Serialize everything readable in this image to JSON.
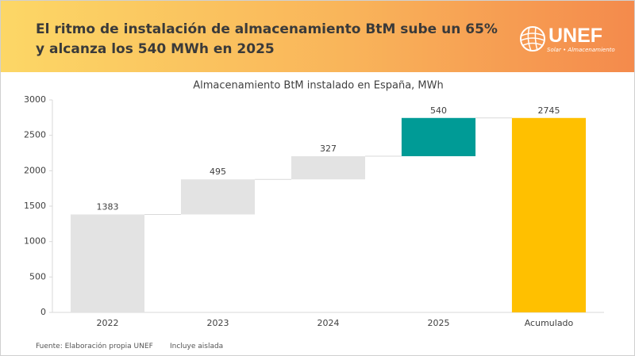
{
  "header": {
    "title_lines": [
      "El ritmo de instalación de almacenamiento BtM sube un 65%",
      "y alcanza los 540 MWh en 2025"
    ],
    "logo": {
      "name": "UNEF",
      "tagline": "Solar • Almacenamiento"
    }
  },
  "chart_data": {
    "type": "waterfall",
    "title": "Almacenamiento BtM instalado en España, MWh",
    "categories": [
      "2022",
      "2023",
      "2024",
      "2025",
      "Acumulado"
    ],
    "values": [
      1383,
      495,
      327,
      540,
      2745
    ],
    "is_total": [
      false,
      false,
      false,
      false,
      true
    ],
    "colors": [
      "#e3e3e3",
      "#e3e3e3",
      "#e3e3e3",
      "#009b96",
      "#ffc000"
    ],
    "ylim": [
      0,
      3000
    ],
    "yticks": [
      0,
      500,
      1000,
      1500,
      2000,
      2500,
      3000
    ],
    "grid": false
  },
  "footer": {
    "source": "Fuente: Elaboración propia UNEF",
    "note": "Incluye aislada"
  }
}
